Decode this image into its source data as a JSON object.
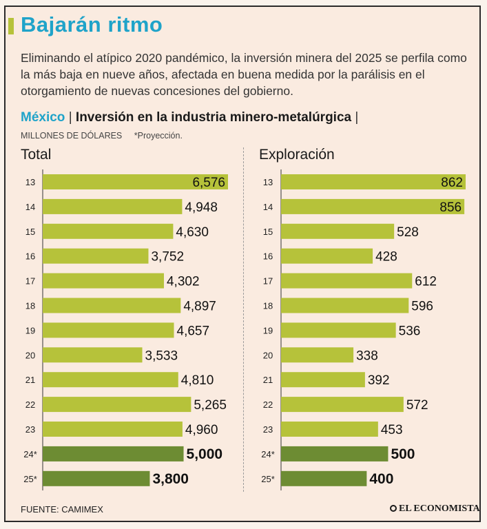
{
  "headline": "Bajarán ritmo",
  "lede": "Eliminando el atípico 2020 pandémico, la inversión minera del 2025 se perfila como la más baja en nueve años, afectada en buena medida por la parálisis en el otorgamiento de nuevas concesiones del gobierno.",
  "chart_title": {
    "country": "México",
    "separator": "|",
    "main": "Inversión en la industria minero-metalúrgica"
  },
  "unit": "MILLONES DE DÓLARES",
  "note": "*Proyección.",
  "source": "FUENTE: CAMIMEX",
  "brand": "EL ECONOMISTA",
  "colors": {
    "bar": "#b6c23a",
    "bar_projection": "#6d8c33",
    "headline": "#1fa3c9"
  },
  "chart_data": [
    {
      "type": "bar",
      "orientation": "horizontal",
      "title": "Total",
      "categories": [
        "13",
        "14",
        "15",
        "16",
        "17",
        "18",
        "19",
        "20",
        "21",
        "22",
        "23",
        "24*",
        "25*"
      ],
      "values": [
        6576,
        4948,
        4630,
        3752,
        4302,
        4897,
        4657,
        3533,
        4810,
        5265,
        4960,
        5000,
        3800
      ],
      "labels": [
        "6,576",
        "4,948",
        "4,630",
        "3,752",
        "4,302",
        "4,897",
        "4,657",
        "3,533",
        "4,810",
        "5,265",
        "4,960",
        "5,000",
        "3,800"
      ],
      "projection": [
        false,
        false,
        false,
        false,
        false,
        false,
        false,
        false,
        false,
        false,
        false,
        true,
        true
      ],
      "xlim": [
        0,
        6576
      ]
    },
    {
      "type": "bar",
      "orientation": "horizontal",
      "title": "Exploración",
      "categories": [
        "13",
        "14",
        "15",
        "16",
        "17",
        "18",
        "19",
        "20",
        "21",
        "22",
        "23",
        "24*",
        "25*"
      ],
      "values": [
        862,
        856,
        528,
        428,
        612,
        596,
        536,
        338,
        392,
        572,
        453,
        500,
        400
      ],
      "labels": [
        "862",
        "856",
        "528",
        "428",
        "612",
        "596",
        "536",
        "338",
        "392",
        "572",
        "453",
        "500",
        "400"
      ],
      "projection": [
        false,
        false,
        false,
        false,
        false,
        false,
        false,
        false,
        false,
        false,
        false,
        true,
        true
      ],
      "xlim": [
        0,
        862
      ]
    }
  ]
}
